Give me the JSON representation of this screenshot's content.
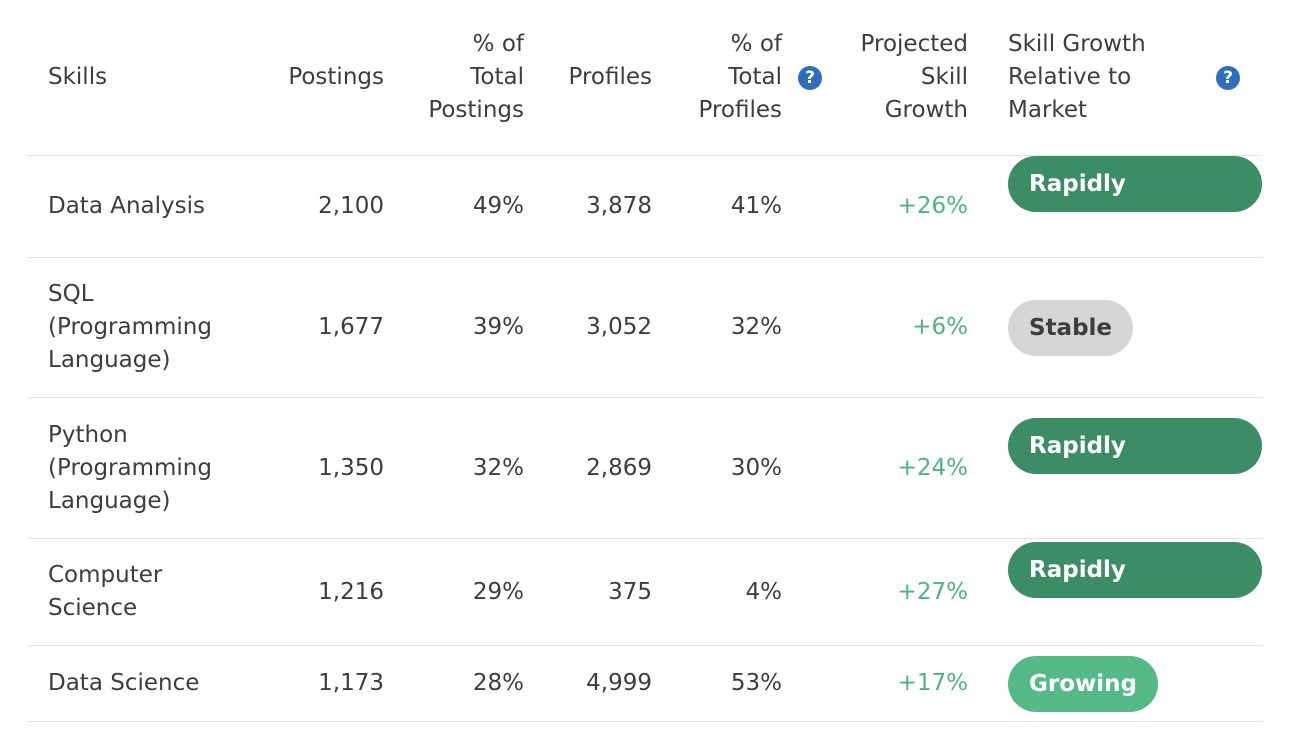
{
  "headers": {
    "skills": "Skills",
    "postings": "Postings",
    "pct_total_postings": [
      "% of",
      "Total",
      "Postings"
    ],
    "profiles": "Profiles",
    "pct_total_profiles": [
      "% of",
      "Total",
      "Profiles"
    ],
    "projected_growth": [
      "Projected",
      "Skill",
      "Growth"
    ],
    "relative_growth": [
      "Skill Growth",
      "Relative to",
      "Market"
    ],
    "help_glyph": "?"
  },
  "rows": [
    {
      "skill": [
        "Data Analysis"
      ],
      "postings": "2,100",
      "pct_postings": "49%",
      "profiles": "3,878",
      "pct_profiles": "41%",
      "growth": "+26%",
      "relative": "Rapidly Growing",
      "relative_style": "rapid"
    },
    {
      "skill": [
        "SQL",
        "(Programming",
        "Language)"
      ],
      "postings": "1,677",
      "pct_postings": "39%",
      "profiles": "3,052",
      "pct_profiles": "32%",
      "growth": "+6%",
      "relative": "Stable",
      "relative_style": "stable"
    },
    {
      "skill": [
        "Python",
        "(Programming",
        "Language)"
      ],
      "postings": "1,350",
      "pct_postings": "32%",
      "profiles": "2,869",
      "pct_profiles": "30%",
      "growth": "+24%",
      "relative": "Rapidly Growing",
      "relative_style": "rapid"
    },
    {
      "skill": [
        "Computer",
        "Science"
      ],
      "postings": "1,216",
      "pct_postings": "29%",
      "profiles": "375",
      "pct_profiles": "4%",
      "growth": "+27%",
      "relative": "Rapidly Growing",
      "relative_style": "rapid"
    },
    {
      "skill": [
        "Data Science"
      ],
      "postings": "1,173",
      "pct_postings": "28%",
      "profiles": "4,999",
      "pct_profiles": "53%",
      "growth": "+17%",
      "relative": "Growing",
      "relative_style": "grow"
    }
  ],
  "colors": {
    "rapid": "#3c8c66",
    "growing": "#55b98a",
    "stable": "#d6d6d6",
    "growth_text": "#4fb384",
    "help_icon": "#2f6dbd"
  }
}
